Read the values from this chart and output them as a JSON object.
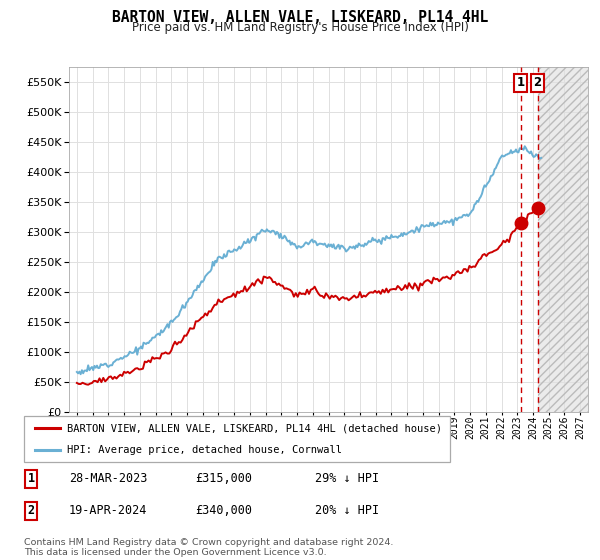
{
  "title": "BARTON VIEW, ALLEN VALE, LISKEARD, PL14 4HL",
  "subtitle": "Price paid vs. HM Land Registry's House Price Index (HPI)",
  "legend_line1": "BARTON VIEW, ALLEN VALE, LISKEARD, PL14 4HL (detached house)",
  "legend_line2": "HPI: Average price, detached house, Cornwall",
  "sale1_date": "28-MAR-2023",
  "sale1_price": "£315,000",
  "sale1_hpi": "29% ↓ HPI",
  "sale2_date": "19-APR-2024",
  "sale2_price": "£340,000",
  "sale2_hpi": "20% ↓ HPI",
  "footer": "Contains HM Land Registry data © Crown copyright and database right 2024.\nThis data is licensed under the Open Government Licence v3.0.",
  "hpi_color": "#6ab0d4",
  "price_color": "#cc0000",
  "dashed_line_color": "#cc0000",
  "ylim_min": 0,
  "ylim_max": 575000,
  "xlim_min": 1994.5,
  "xlim_max": 2027.5,
  "sale1_year": 2023.22,
  "sale2_year": 2024.3,
  "sale1_value": 315000,
  "sale2_value": 340000,
  "background_color": "#ffffff",
  "grid_color": "#e0e0e0"
}
